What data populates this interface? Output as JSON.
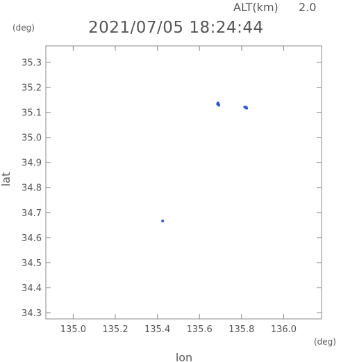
{
  "header": {
    "altitude_label": "ALT(km)",
    "altitude_value": "2.0",
    "timestamp": "2021/07/05 18:24:44"
  },
  "chart_data": {
    "type": "scatter",
    "xlabel": "lon",
    "ylabel": "lat",
    "x_unit": "(deg)",
    "y_unit": "(deg)",
    "xlim": [
      134.87,
      136.18
    ],
    "ylim": [
      34.275,
      35.365
    ],
    "x_ticks": [
      135.0,
      135.2,
      135.4,
      135.6,
      135.8,
      136.0
    ],
    "x_tick_labels": [
      "135.0",
      "135.2",
      "135.4",
      "135.6",
      "135.8",
      "136.0"
    ],
    "y_ticks": [
      34.3,
      34.4,
      34.5,
      34.6,
      34.7,
      34.8,
      34.9,
      35.0,
      35.1,
      35.2,
      35.3
    ],
    "y_tick_labels": [
      "34.3",
      "34.4",
      "34.5",
      "34.6",
      "34.7",
      "34.8",
      "34.9",
      "35.0",
      "35.1",
      "35.2",
      "35.3"
    ],
    "grid": false,
    "marker_color": "#3355dd",
    "series": [
      {
        "points": [
          {
            "x": 135.688,
            "y": 35.137
          },
          {
            "x": 135.69,
            "y": 35.132
          },
          {
            "x": 135.692,
            "y": 35.128
          },
          {
            "x": 135.686,
            "y": 35.133
          },
          {
            "x": 135.815,
            "y": 35.121
          },
          {
            "x": 135.82,
            "y": 35.118
          },
          {
            "x": 135.824,
            "y": 35.116
          },
          {
            "x": 135.822,
            "y": 35.12
          },
          {
            "x": 135.425,
            "y": 34.666
          }
        ]
      }
    ]
  }
}
